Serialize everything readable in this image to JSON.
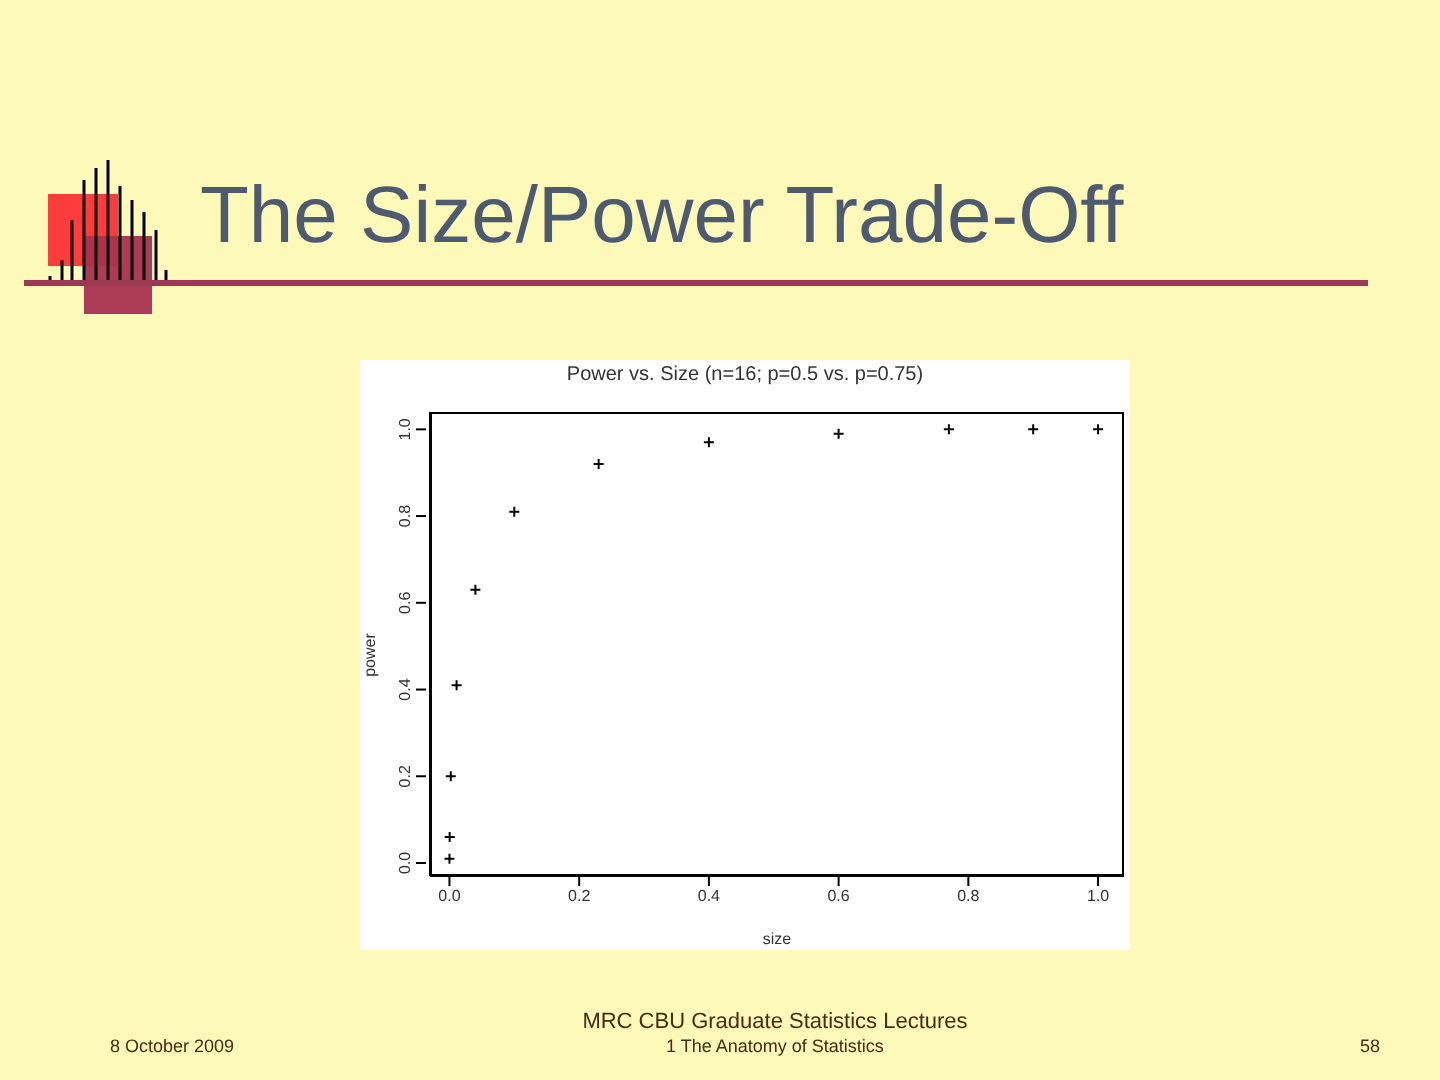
{
  "chart_data": {
    "type": "scatter",
    "title": "The Size/Power Trade-Off",
    "subtitle": "Power vs. Size (n=16; p=0.5 vs. p=0.75)",
    "xlabel": "size",
    "ylabel": "power",
    "x": [
      2e-05,
      0.0003,
      0.002,
      0.011,
      0.04,
      0.1,
      0.23,
      0.4,
      0.6,
      0.77,
      0.9,
      1.0
    ],
    "series": [
      {
        "color": "#000000",
        "values": [
          0.01,
          0.06,
          0.2,
          0.41,
          0.63,
          0.81,
          0.92,
          0.97,
          0.99,
          1.0,
          1.0,
          1.0
        ]
      }
    ],
    "xlim": [
      -0.03,
      1.04
    ],
    "ylim": [
      -0.03,
      1.04
    ],
    "xticks": [
      {
        "value": 0,
        "label": "0.0"
      },
      0.2,
      0.4,
      0.6,
      0.8,
      {
        "value": 1,
        "label": "1.0"
      }
    ],
    "yticks": [
      {
        "value": 0,
        "label": "0.0"
      },
      0.2,
      0.4,
      0.6,
      0.8,
      {
        "value": 1,
        "label": "1.0"
      }
    ],
    "marker": "cross",
    "grid": false,
    "legend": false,
    "annotations": [
      "8 October 2009",
      "MRC CBU Graduate Statistics Lectures",
      "1  The Anatomy of Statistics",
      "58"
    ]
  }
}
